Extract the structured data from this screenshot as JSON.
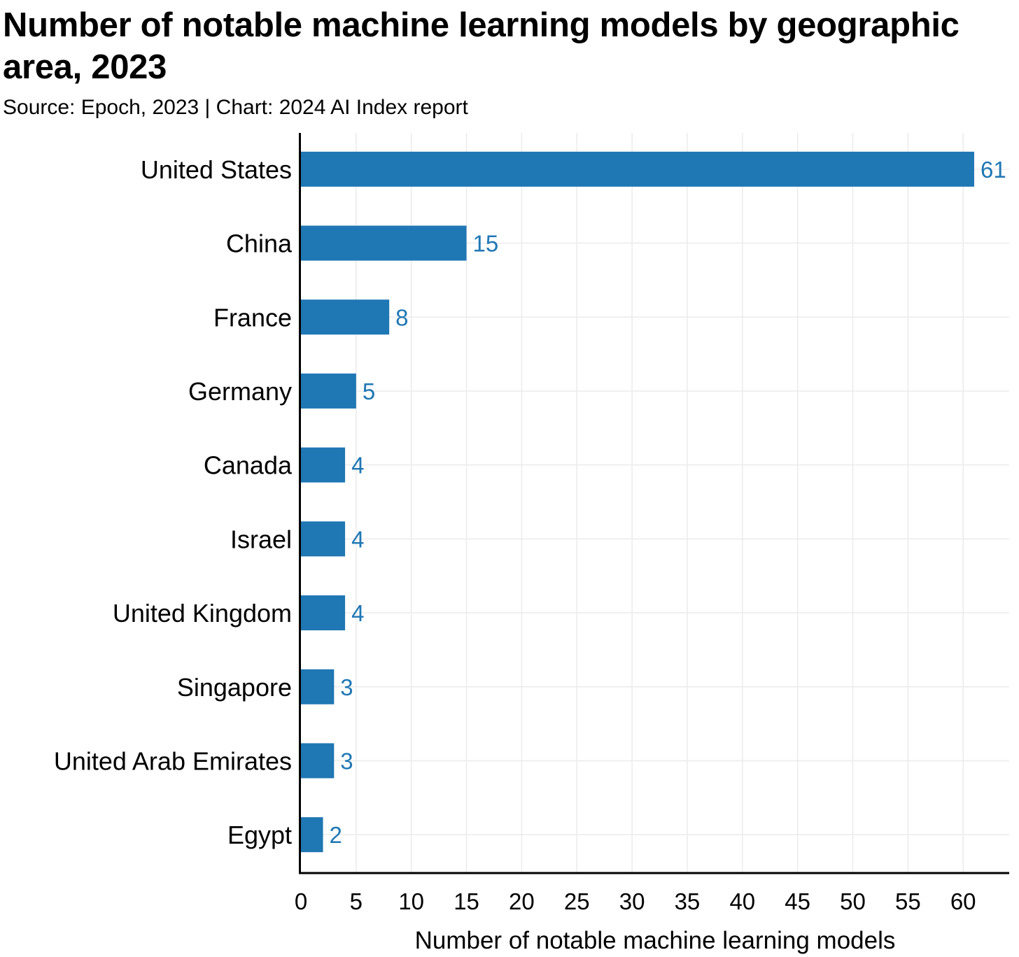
{
  "title": "Number of notable machine learning models by geographic area, 2023",
  "subtitle": "Source: Epoch, 2023 | Chart: 2024 AI Index report",
  "chart_data": {
    "type": "bar",
    "orientation": "horizontal",
    "categories": [
      "United States",
      "China",
      "France",
      "Germany",
      "Canada",
      "Israel",
      "United Kingdom",
      "Singapore",
      "United Arab Emirates",
      "Egypt"
    ],
    "values": [
      61,
      15,
      8,
      5,
      4,
      4,
      4,
      3,
      3,
      2
    ],
    "xlabel": "Number of notable machine learning models",
    "ylabel": "",
    "xlim": [
      0,
      64
    ],
    "xticks": [
      0,
      5,
      10,
      15,
      20,
      25,
      30,
      35,
      40,
      45,
      50,
      55,
      60
    ],
    "grid": true,
    "bar_color": "#1f77b4",
    "label_color": "#1f77b4"
  }
}
